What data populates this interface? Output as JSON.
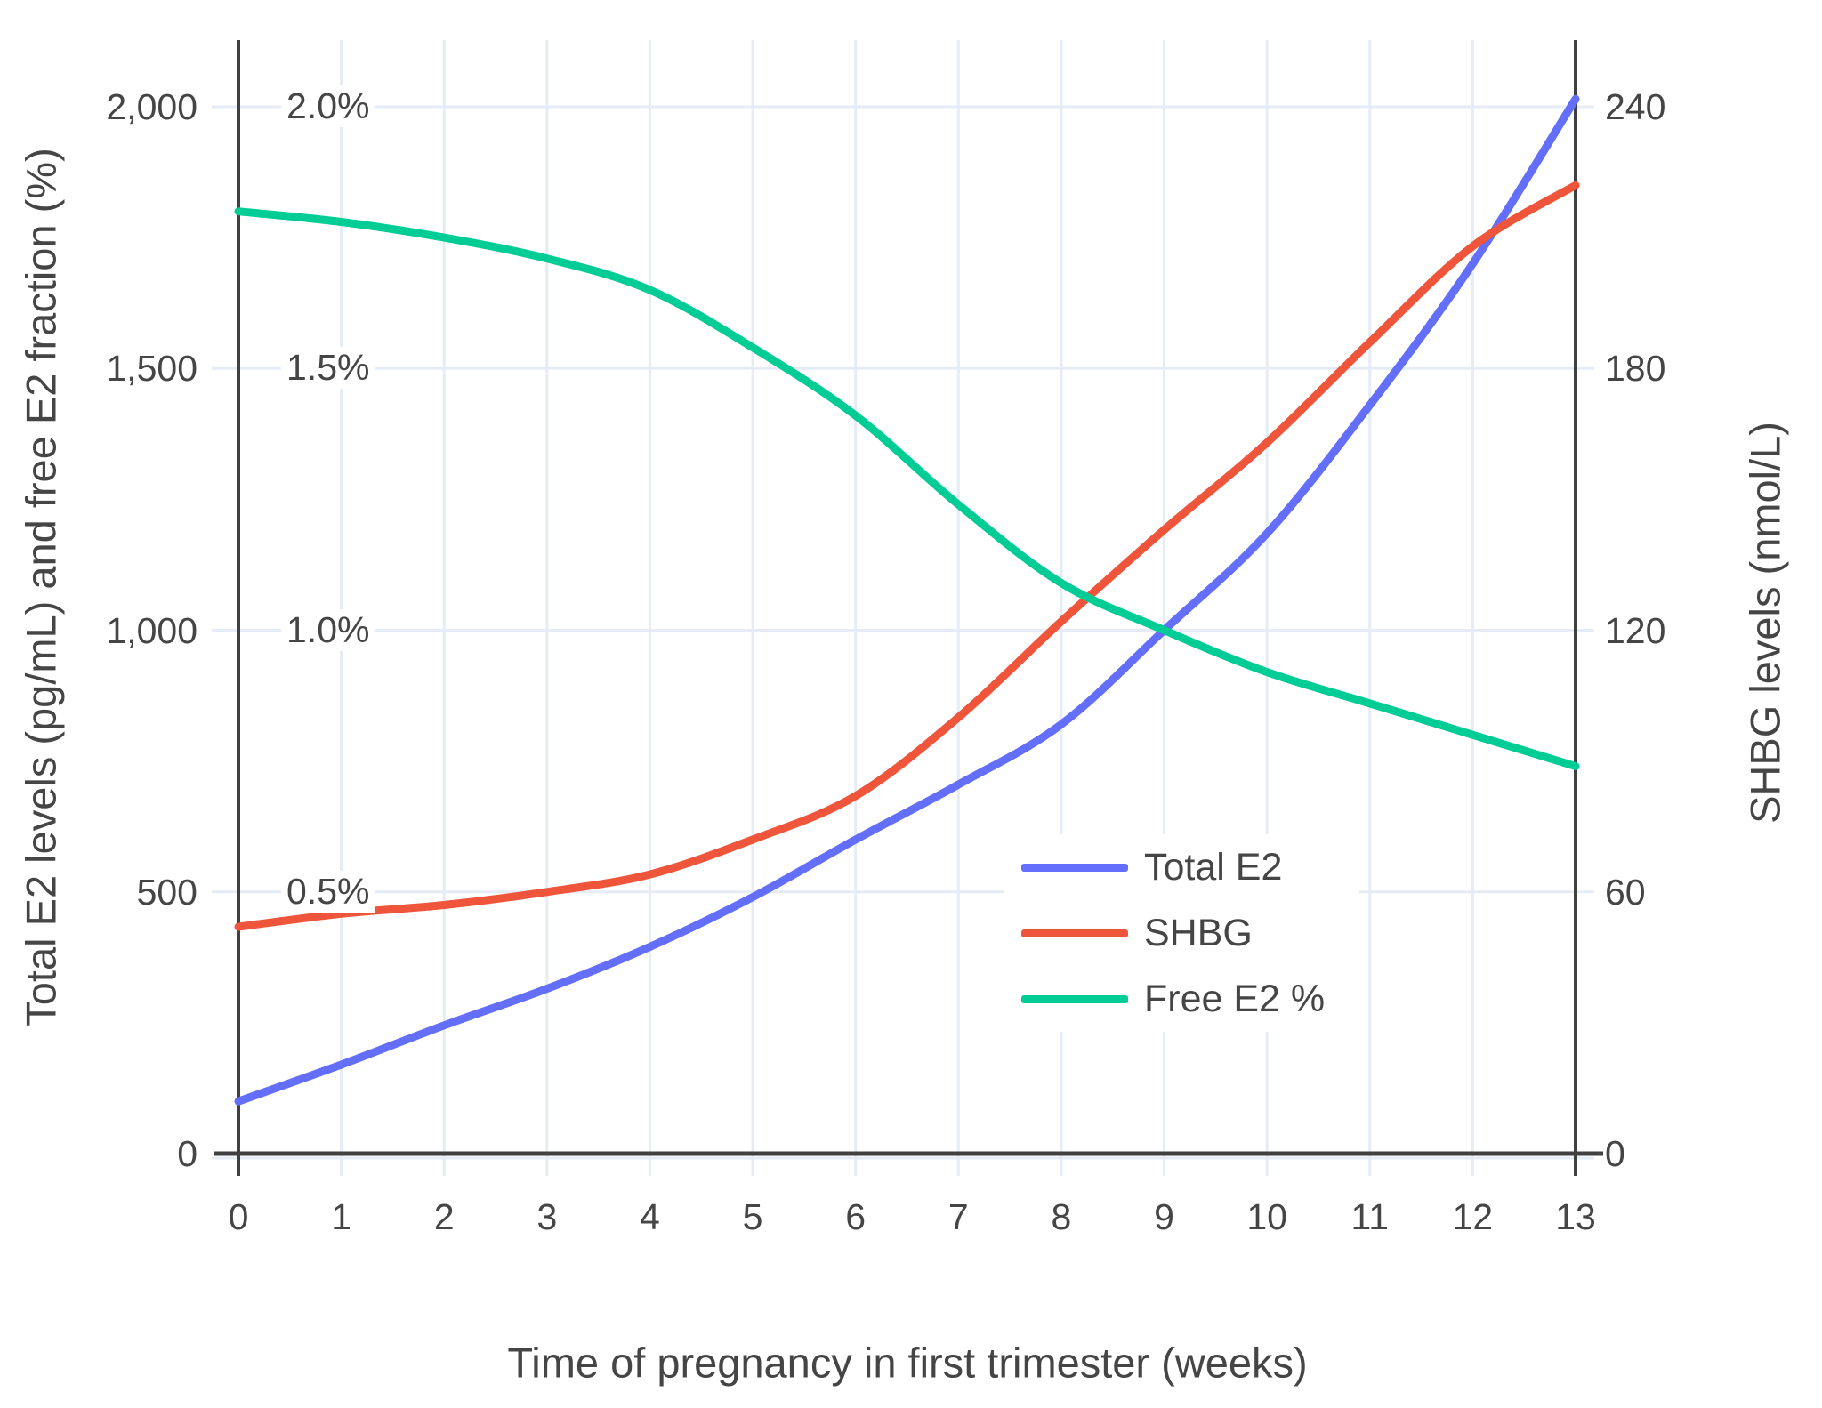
{
  "chart_data": {
    "type": "line",
    "xlabel": "Time of pregnancy in first trimester (weeks)",
    "ylabel_left": "Total E2 levels (pg/mL) and free E2 fraction (%)",
    "ylabel_right": "SHBG levels (nmol/L)",
    "x": [
      0,
      1,
      2,
      3,
      4,
      5,
      6,
      7,
      8,
      9,
      10,
      11,
      12,
      13
    ],
    "left_axis": {
      "range": [
        0,
        2000
      ],
      "ticks": [
        {
          "value": 0,
          "label": "0"
        },
        {
          "value": 500,
          "label": "500"
        },
        {
          "value": 1000,
          "label": "1,000"
        },
        {
          "value": 1500,
          "label": "1,500"
        },
        {
          "value": 2000,
          "label": "2,000"
        }
      ]
    },
    "percent_annotations": [
      {
        "value": 500,
        "label": "0.5%"
      },
      {
        "value": 1000,
        "label": "1.0%"
      },
      {
        "value": 1500,
        "label": "1.5%"
      },
      {
        "value": 2000,
        "label": "2.0%"
      }
    ],
    "right_axis": {
      "range": [
        0,
        240
      ],
      "ticks": [
        {
          "value": 0,
          "label": "0"
        },
        {
          "value": 60,
          "label": "60"
        },
        {
          "value": 120,
          "label": "120"
        },
        {
          "value": 180,
          "label": "180"
        },
        {
          "value": 240,
          "label": "240"
        }
      ]
    },
    "series": [
      {
        "name": "Total E2",
        "color": "#636efa",
        "axis": "left",
        "unit": "pg/mL",
        "values": [
          100,
          170,
          245,
          315,
          395,
          490,
          600,
          705,
          820,
          1000,
          1185,
          1430,
          1700,
          2015
        ]
      },
      {
        "name": "SHBG",
        "color": "#ef553b",
        "axis": "right",
        "unit": "nmol/L",
        "values": [
          52,
          55,
          57,
          60,
          64,
          72,
          82,
          100,
          122,
          143,
          163,
          186,
          208,
          222
        ]
      },
      {
        "name": "Free E2 %",
        "color": "#00cc96",
        "axis": "left_percent",
        "unit": "%",
        "values": [
          1.8,
          1.78,
          1.75,
          1.71,
          1.65,
          1.54,
          1.41,
          1.24,
          1.09,
          1.0,
          0.92,
          0.86,
          0.8,
          0.74
        ]
      }
    ],
    "legend_position": "inside-right-lower",
    "grid": true
  },
  "colors": {
    "grid": "#e5ecf6",
    "axis_line": "#404040",
    "text": "#454545",
    "background": "#ffffff"
  }
}
